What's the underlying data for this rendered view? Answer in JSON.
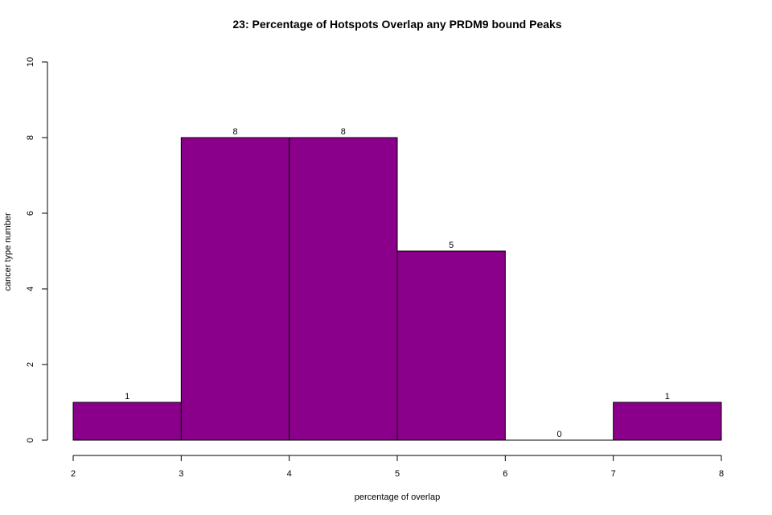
{
  "chart_data": {
    "type": "bar",
    "title": "23: Percentage of Hotspots Overlap any PRDM9 bound Peaks",
    "xlabel": "percentage of overlap",
    "ylabel": "cancer type number",
    "bins": [
      {
        "start": 2,
        "end": 3,
        "count": 1,
        "label": "1"
      },
      {
        "start": 3,
        "end": 4,
        "count": 8,
        "label": "8"
      },
      {
        "start": 4,
        "end": 5,
        "count": 8,
        "label": "8"
      },
      {
        "start": 5,
        "end": 6,
        "count": 5,
        "label": "5"
      },
      {
        "start": 6,
        "end": 7,
        "count": 0,
        "label": "0"
      },
      {
        "start": 7,
        "end": 8,
        "count": 1,
        "label": "1"
      }
    ],
    "xlim": [
      2,
      8
    ],
    "ylim": [
      0,
      10
    ],
    "x_ticks": [
      "2",
      "3",
      "4",
      "5",
      "6",
      "7",
      "8"
    ],
    "y_ticks": [
      "0",
      "2",
      "4",
      "6",
      "8",
      "10"
    ],
    "bar_color": "#8b008b",
    "grid": false,
    "legend": "none"
  }
}
